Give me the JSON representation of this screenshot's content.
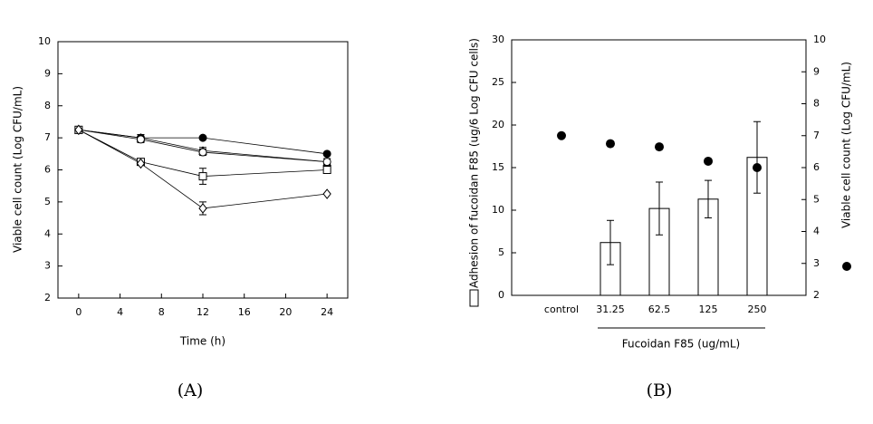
{
  "chart_data": [
    {
      "type": "line",
      "panel": "(A)",
      "x_label": "Time (h)",
      "y_label": "Viable cell count (Log CFU/mL)",
      "x": [
        0,
        6,
        12,
        24
      ],
      "xlim": [
        -2,
        26
      ],
      "xticks": [
        0,
        4,
        8,
        12,
        16,
        20,
        24
      ],
      "ylim": [
        2,
        10
      ],
      "yticks": [
        2,
        3,
        4,
        5,
        6,
        7,
        8,
        9,
        10
      ],
      "series": [
        {
          "marker": "filled-circle",
          "color": "#000000",
          "values": [
            7.25,
            7.0,
            7.0,
            6.5
          ],
          "errors": [
            null,
            0.1,
            null,
            null
          ]
        },
        {
          "marker": "triangle",
          "color": "#000000",
          "values": [
            7.25,
            7.0,
            6.6,
            6.25
          ],
          "errors": [
            null,
            0.1,
            0.1,
            0.1
          ]
        },
        {
          "marker": "circle",
          "color": "#000000",
          "values": [
            7.25,
            6.95,
            6.55,
            6.25
          ],
          "errors": [
            null,
            0.1,
            0.1,
            0.1
          ]
        },
        {
          "marker": "square",
          "color": "#000000",
          "values": [
            7.25,
            6.25,
            5.8,
            6.0
          ],
          "errors": [
            null,
            0.1,
            0.25,
            0.1
          ]
        },
        {
          "marker": "diamond",
          "color": "#000000",
          "values": [
            7.25,
            6.2,
            4.8,
            5.25
          ],
          "errors": [
            null,
            null,
            0.2,
            null
          ]
        }
      ]
    },
    {
      "type": "bar",
      "panel": "(B)",
      "x_label": "Fucoidan F85 (ug/mL)",
      "y_label": "Adhesion of fucoidan F85 (ug/6 Log CFU cells)",
      "y2_label": "Viable cell count (Log CFU/mL)",
      "categories": [
        "control",
        "31.25",
        "62.5",
        "125",
        "250"
      ],
      "ylim": [
        0,
        30
      ],
      "yticks": [
        0,
        5,
        10,
        15,
        20,
        25,
        30
      ],
      "y2lim": [
        2,
        10
      ],
      "y2ticks": [
        2,
        3,
        4,
        5,
        6,
        7,
        8,
        9,
        10
      ],
      "series": [
        {
          "type": "bar",
          "color": "#ffffff",
          "values": [
            null,
            6.2,
            10.2,
            11.3,
            16.2
          ],
          "errors": [
            null,
            2.6,
            3.1,
            2.2,
            4.2
          ]
        },
        {
          "type": "scatter",
          "axis": "y2",
          "color": "#000000",
          "values": [
            7.0,
            6.75,
            6.65,
            6.2,
            6.0
          ]
        }
      ]
    }
  ]
}
